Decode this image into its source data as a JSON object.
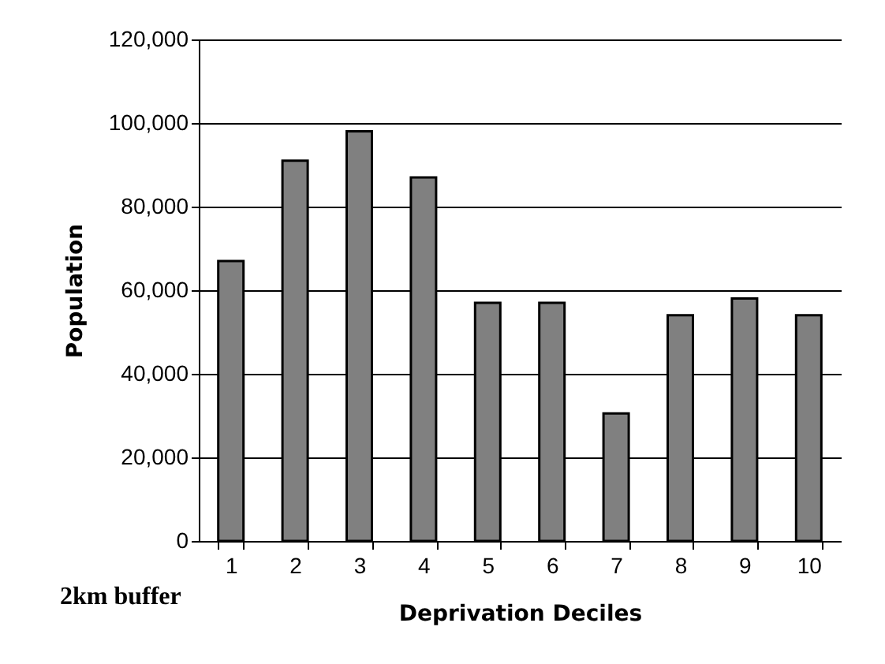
{
  "chart_data": {
    "type": "bar",
    "xlabel": "Deprivation Deciles",
    "ylabel": "Population",
    "categories": [
      "1",
      "2",
      "3",
      "4",
      "5",
      "6",
      "7",
      "8",
      "9",
      "10"
    ],
    "values": [
      67000,
      91000,
      98000,
      87000,
      57000,
      57000,
      30500,
      54000,
      58000,
      54000
    ],
    "color": "#808080",
    "ylim": [
      0,
      120000
    ],
    "yticks": [
      0,
      {
        "value": 20000,
        "label": "20,000"
      },
      {
        "value": 40000,
        "label": "40,000"
      },
      {
        "value": 60000,
        "label": "60,000"
      },
      {
        "value": 80000,
        "label": "80,000"
      },
      {
        "value": 100000,
        "label": "100,000"
      },
      {
        "value": 120000,
        "label": "120,000"
      }
    ],
    "grid": "y",
    "annotations": [
      "2km buffer"
    ]
  }
}
